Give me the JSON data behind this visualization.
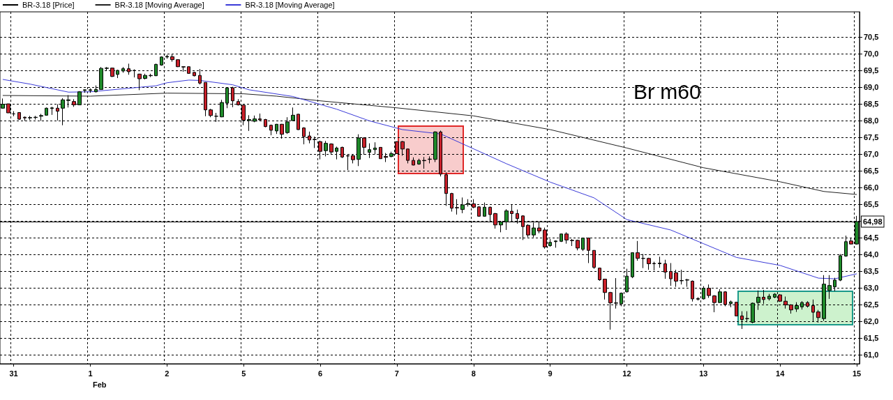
{
  "chart_data": {
    "type": "candlestick",
    "categories": [
      null,
      null,
      "31",
      null,
      null,
      null,
      null,
      null,
      null,
      null,
      null,
      null,
      null,
      null,
      null,
      null,
      "1",
      null,
      null,
      null,
      null,
      null,
      null,
      null,
      null,
      null,
      null,
      null,
      null,
      null,
      "2",
      null,
      null,
      null,
      null,
      null,
      null,
      null,
      null,
      null,
      null,
      null,
      null,
      null,
      "5",
      null,
      null,
      null,
      null,
      null,
      null,
      null,
      null,
      null,
      null,
      null,
      null,
      null,
      "6",
      null,
      null,
      null,
      null,
      null,
      null,
      null,
      null,
      null,
      null,
      null,
      null,
      null,
      "7",
      null,
      null,
      null,
      null,
      null,
      null,
      null,
      null,
      null,
      null,
      null,
      null,
      null,
      "8",
      null,
      null,
      null,
      null,
      null,
      null,
      null,
      null,
      null,
      null,
      null,
      null,
      null,
      "9",
      null,
      null,
      null,
      null,
      null,
      null,
      null,
      null,
      null,
      null,
      null,
      null,
      null,
      "12",
      null,
      null,
      null,
      null,
      null,
      null,
      null,
      null,
      null,
      null,
      null,
      null,
      null,
      "13",
      null,
      null,
      null,
      null,
      null,
      null,
      null,
      null,
      null,
      null,
      null,
      null,
      null,
      "14",
      null,
      null,
      null,
      null,
      null,
      null,
      null,
      null,
      null,
      null,
      null,
      null,
      null,
      "15"
    ],
    "series": [
      {
        "name": "BR-3.18 [Price]",
        "color": "#000000",
        "colors": [
          "#1f8a2a",
          "#c8202a",
          "#000000",
          "#c8202a",
          "#c8202a",
          "#1f8a2a",
          "#1f8a2a",
          "#1f8a2a",
          "#1f8a2a",
          "#1f8a2a",
          "#c8202a",
          "#1f8a2a",
          "#1f8a2a",
          "#c8202a",
          "#1f8a2a",
          "#1f8a2a",
          "#1f8a2a",
          "#1f8a2a",
          "#1f8a2a",
          "#1f8a2a",
          "#c8202a",
          "#1f8a2a",
          "#1f8a2a",
          "#c8202a",
          "#c8202a",
          "#c8202a",
          "#1f8a2a",
          "#c8202a",
          "#1f8a2a",
          "#1f8a2a",
          "#1f8a2a",
          "#c8202a",
          "#c8202a",
          "#c8202a",
          "#c8202a",
          "#c8202a",
          "#c8202a",
          "#c8202a",
          "#c8202a",
          "#000000",
          "#1f8a2a",
          "#1f8a2a",
          "#c8202a",
          "#c8202a",
          "#c8202a",
          "#1f8a2a",
          "#1f8a2a",
          "#c8202a",
          "#c8202a",
          "#c8202a",
          "#1f8a2a",
          "#c8202a",
          "#1f8a2a",
          "#1f8a2a",
          "#c8202a",
          "#c8202a",
          "#c8202a",
          "#c8202a",
          "#c8202a",
          "#1f8a2a",
          "#c8202a",
          "#1f8a2a",
          "#c8202a",
          "#c8202a",
          "#c8202a",
          "#1f8a2a",
          "#c8202a",
          "#1f8a2a",
          "#1f8a2a",
          "#c8202a",
          "#c8202a",
          "#1f8a2a",
          "#c8202a",
          "#c8202a",
          "#c8202a",
          "#c8202a",
          "#1f8a2a",
          "#c8202a",
          "#1f8a2a",
          "#1f8a2a",
          "#c8202a",
          "#c8202a",
          "#c8202a",
          "#c8202a",
          "#1f8a2a",
          "#1f8a2a",
          "#c8202a",
          "#c8202a",
          "#1f8a2a",
          "#c8202a",
          "#c8202a",
          "#1f8a2a",
          "#1f8a2a",
          "#c8202a",
          "#c8202a",
          "#c8202a",
          "#c8202a",
          "#1f8a2a",
          "#c8202a",
          "#c8202a",
          "#1f8a2a",
          "#1f8a2a",
          "#1f8a2a",
          "#c8202a",
          "#c8202a",
          "#c8202a",
          "#1f8a2a",
          "#c8202a",
          "#c8202a",
          "#c8202a",
          "#c8202a",
          "#c8202a",
          "#c8202a",
          "#1f8a2a",
          "#1f8a2a",
          "#1f8a2a",
          "#c8202a",
          "#000000",
          "#c8202a",
          "#c8202a",
          "#1f8a2a",
          "#c8202a",
          "#c8202a",
          "#c8202a",
          "#1f8a2a",
          "#1f8a2a",
          "#c8202a",
          "#1f8a2a",
          "#1f8a2a",
          "#c8202a",
          "#c8202a",
          "#1f8a2a",
          "#c8202a",
          "#1f8a2a",
          "#c8202a",
          "#c8202a",
          "#000000",
          "#1f8a2a",
          "#1f8a2a",
          "#c8202a",
          "#1f8a2a",
          "#1f8a2a",
          "#c8202a",
          "#c8202a",
          "#c8202a",
          "#1f8a2a",
          "#1f8a2a",
          "#c8202a",
          "#c8202a",
          "#c8202a",
          "#1f8a2a",
          "#1f8a2a",
          "#1f8a2a",
          "#1f8a2a",
          "#1f8a2a",
          "#c8202a",
          "#1f8a2a"
        ],
        "ohlc": [
          [
            68.37,
            68.66,
            68.36,
            68.49
          ],
          [
            68.5,
            68.5,
            68.23,
            68.23
          ],
          [
            68.2,
            68.28,
            68.13,
            68.2
          ],
          [
            68.24,
            68.25,
            68.02,
            68.04
          ],
          [
            68.1,
            68.12,
            67.99,
            68.08
          ],
          [
            68.08,
            68.14,
            68.02,
            68.09
          ],
          [
            68.09,
            68.14,
            68.03,
            68.1
          ],
          [
            68.13,
            68.2,
            67.99,
            68.15
          ],
          [
            68.16,
            68.39,
            68.15,
            68.37
          ],
          [
            68.36,
            68.41,
            68.17,
            68.38
          ],
          [
            68.37,
            68.49,
            68.0,
            68.28
          ],
          [
            68.37,
            68.67,
            67.86,
            68.62
          ],
          [
            68.6,
            68.76,
            68.39,
            68.62
          ],
          [
            68.57,
            68.64,
            68.41,
            68.47
          ],
          [
            68.47,
            68.88,
            68.47,
            68.86
          ],
          [
            68.9,
            68.93,
            68.83,
            68.92
          ],
          [
            68.9,
            68.96,
            68.83,
            68.92
          ],
          [
            68.86,
            69.05,
            68.84,
            68.93
          ],
          [
            68.93,
            69.6,
            68.93,
            69.56
          ],
          [
            69.56,
            69.6,
            69.5,
            69.57
          ],
          [
            69.57,
            69.58,
            69.3,
            69.32
          ],
          [
            69.38,
            69.52,
            69.27,
            69.5
          ],
          [
            69.48,
            69.6,
            69.43,
            69.55
          ],
          [
            69.55,
            69.7,
            69.37,
            69.46
          ],
          [
            69.5,
            69.53,
            69.29,
            69.49
          ],
          [
            69.39,
            69.4,
            68.91,
            69.25
          ],
          [
            69.26,
            69.4,
            69.23,
            69.35
          ],
          [
            69.35,
            69.4,
            69.3,
            69.34
          ],
          [
            69.34,
            69.7,
            69.33,
            69.68
          ],
          [
            69.66,
            69.92,
            69.64,
            69.9
          ],
          [
            69.9,
            69.97,
            69.85,
            69.92
          ],
          [
            69.91,
            69.98,
            69.76,
            69.82
          ],
          [
            69.82,
            69.83,
            69.6,
            69.61
          ],
          [
            69.61,
            69.62,
            69.46,
            69.6
          ],
          [
            69.61,
            69.62,
            69.4,
            69.41
          ],
          [
            69.44,
            69.46,
            69.32,
            69.34
          ],
          [
            69.35,
            69.54,
            69.08,
            69.12
          ],
          [
            69.14,
            69.14,
            68.13,
            68.32
          ],
          [
            68.32,
            68.35,
            68.1,
            68.15
          ],
          [
            68.13,
            68.23,
            67.96,
            68.13
          ],
          [
            68.11,
            68.62,
            68.1,
            68.54
          ],
          [
            68.52,
            69.0,
            68.37,
            68.98
          ],
          [
            68.98,
            69.01,
            68.4,
            68.59
          ],
          [
            68.57,
            68.64,
            68.45,
            68.47
          ],
          [
            68.46,
            68.46,
            67.86,
            68.01
          ],
          [
            68.0,
            68.16,
            67.69,
            68.03
          ],
          [
            67.98,
            68.15,
            67.95,
            68.05
          ],
          [
            68.05,
            68.21,
            67.99,
            68.02
          ],
          [
            68.03,
            68.05,
            67.8,
            67.82
          ],
          [
            67.86,
            67.88,
            67.56,
            67.71
          ],
          [
            67.69,
            67.9,
            67.6,
            67.89
          ],
          [
            67.89,
            67.9,
            67.46,
            67.59
          ],
          [
            67.64,
            68.1,
            67.6,
            67.96
          ],
          [
            68.0,
            68.39,
            67.99,
            68.16
          ],
          [
            68.19,
            68.2,
            67.72,
            67.73
          ],
          [
            67.78,
            67.8,
            67.29,
            67.52
          ],
          [
            67.54,
            67.67,
            67.32,
            67.42
          ],
          [
            67.44,
            67.52,
            67.18,
            67.43
          ],
          [
            67.37,
            67.4,
            66.84,
            67.08
          ],
          [
            67.1,
            67.39,
            66.93,
            67.32
          ],
          [
            67.3,
            67.32,
            67.0,
            67.06
          ],
          [
            67.08,
            67.22,
            66.84,
            67.18
          ],
          [
            67.2,
            67.22,
            66.88,
            66.91
          ],
          [
            66.95,
            67.0,
            66.52,
            66.94
          ],
          [
            66.95,
            66.98,
            66.72,
            66.83
          ],
          [
            66.84,
            67.59,
            66.64,
            67.48
          ],
          [
            67.48,
            67.5,
            66.98,
            67.2
          ],
          [
            67.05,
            67.32,
            66.88,
            67.13
          ],
          [
            67.13,
            67.35,
            66.99,
            67.18
          ],
          [
            67.2,
            67.2,
            66.86,
            66.86
          ],
          [
            66.93,
            67.03,
            66.76,
            66.9
          ],
          [
            66.93,
            67.07,
            66.9,
            67.01
          ],
          [
            67.37,
            67.38,
            67.0,
            67.01
          ],
          [
            67.37,
            67.39,
            66.95,
            67.15
          ],
          [
            67.15,
            67.16,
            66.72,
            66.81
          ],
          [
            66.81,
            66.9,
            66.66,
            66.67
          ],
          [
            66.7,
            66.86,
            66.68,
            66.81
          ],
          [
            66.81,
            66.91,
            66.56,
            66.8
          ],
          [
            66.84,
            66.93,
            66.72,
            66.85
          ],
          [
            66.84,
            67.68,
            66.76,
            67.66
          ],
          [
            67.66,
            67.7,
            66.33,
            66.4
          ],
          [
            66.38,
            66.45,
            65.45,
            65.82
          ],
          [
            65.82,
            65.84,
            65.28,
            65.38
          ],
          [
            65.4,
            65.65,
            65.19,
            65.39
          ],
          [
            65.34,
            65.7,
            65.23,
            65.48
          ],
          [
            65.5,
            65.65,
            65.43,
            65.52
          ],
          [
            65.51,
            65.65,
            65.38,
            65.41
          ],
          [
            65.42,
            65.44,
            65.13,
            65.14
          ],
          [
            65.14,
            65.55,
            65.13,
            65.41
          ],
          [
            65.41,
            65.43,
            64.99,
            65.19
          ],
          [
            65.22,
            65.24,
            64.77,
            64.88
          ],
          [
            64.88,
            65.0,
            64.66,
            64.97
          ],
          [
            64.97,
            65.35,
            64.73,
            65.3
          ],
          [
            65.29,
            65.49,
            64.98,
            65.22
          ],
          [
            65.22,
            65.34,
            64.92,
            65.07
          ],
          [
            65.15,
            65.17,
            64.43,
            64.83
          ],
          [
            64.87,
            64.9,
            64.51,
            64.58
          ],
          [
            64.58,
            64.95,
            64.51,
            64.79
          ],
          [
            64.79,
            64.99,
            64.63,
            64.7
          ],
          [
            64.73,
            64.8,
            64.17,
            64.22
          ],
          [
            64.26,
            64.46,
            64.23,
            64.36
          ],
          [
            64.38,
            64.42,
            64.2,
            64.4
          ],
          [
            64.39,
            64.62,
            64.37,
            64.61
          ],
          [
            64.61,
            64.66,
            64.32,
            64.43
          ],
          [
            64.42,
            64.46,
            64.25,
            64.41
          ],
          [
            64.42,
            64.44,
            64.12,
            64.19
          ],
          [
            64.15,
            64.5,
            64.1,
            64.49
          ],
          [
            64.49,
            64.5,
            63.74,
            64.12
          ],
          [
            64.12,
            64.12,
            63.57,
            63.61
          ],
          [
            63.59,
            63.6,
            63.21,
            63.24
          ],
          [
            63.26,
            63.27,
            62.65,
            62.86
          ],
          [
            62.86,
            62.88,
            61.75,
            62.55
          ],
          [
            62.55,
            63.29,
            62.38,
            62.54
          ],
          [
            62.52,
            62.86,
            62.45,
            62.84
          ],
          [
            62.88,
            63.57,
            62.86,
            63.35
          ],
          [
            63.33,
            64.05,
            63.29,
            64.05
          ],
          [
            64.05,
            64.4,
            63.81,
            63.88
          ],
          [
            63.88,
            64.01,
            63.59,
            63.88
          ],
          [
            63.88,
            63.9,
            63.54,
            63.72
          ],
          [
            63.73,
            63.78,
            63.52,
            63.72
          ],
          [
            63.72,
            63.93,
            63.6,
            63.74
          ],
          [
            63.72,
            63.84,
            63.27,
            63.47
          ],
          [
            63.49,
            63.74,
            63.06,
            63.27
          ],
          [
            63.45,
            63.54,
            63.03,
            63.2
          ],
          [
            63.21,
            63.54,
            63.1,
            63.22
          ],
          [
            63.23,
            63.27,
            63.03,
            63.24
          ],
          [
            63.2,
            63.22,
            62.59,
            62.67
          ],
          [
            62.66,
            62.72,
            62.62,
            62.68
          ],
          [
            62.67,
            63.05,
            62.65,
            62.99
          ],
          [
            62.99,
            63.1,
            62.7,
            62.77
          ],
          [
            62.76,
            62.78,
            62.27,
            62.56
          ],
          [
            62.56,
            62.96,
            62.55,
            62.88
          ],
          [
            62.88,
            62.9,
            62.45,
            62.5
          ],
          [
            62.53,
            62.62,
            62.42,
            62.58
          ],
          [
            62.57,
            62.58,
            62.16,
            62.16
          ],
          [
            62.16,
            62.3,
            61.77,
            62.05
          ],
          [
            62.08,
            62.3,
            61.97,
            62.08
          ],
          [
            61.97,
            62.56,
            61.94,
            62.54
          ],
          [
            62.56,
            62.92,
            62.34,
            62.72
          ],
          [
            62.72,
            62.94,
            62.52,
            62.65
          ],
          [
            62.67,
            62.82,
            62.62,
            62.75
          ],
          [
            62.72,
            62.84,
            62.69,
            62.81
          ],
          [
            62.79,
            62.81,
            62.58,
            62.6
          ],
          [
            62.6,
            62.74,
            62.38,
            62.49
          ],
          [
            62.49,
            62.51,
            62.23,
            62.34
          ],
          [
            62.37,
            62.57,
            62.28,
            62.47
          ],
          [
            62.43,
            62.6,
            62.35,
            62.56
          ],
          [
            62.56,
            62.6,
            62.41,
            62.45
          ],
          [
            62.47,
            62.65,
            62.0,
            62.27
          ],
          [
            62.28,
            62.34,
            61.96,
            62.11
          ],
          [
            62.08,
            63.38,
            62.01,
            63.11
          ],
          [
            62.92,
            63.38,
            62.67,
            63.07
          ],
          [
            63.03,
            63.3,
            62.9,
            63.23
          ],
          [
            63.23,
            64.01,
            63.2,
            63.96
          ],
          [
            63.95,
            64.56,
            63.93,
            64.38
          ],
          [
            64.4,
            64.48,
            64.3,
            64.31
          ],
          [
            64.31,
            65.15,
            64.29,
            64.98
          ]
        ]
      },
      {
        "name": "BR-3.18 [Moving Average]",
        "type": "line",
        "color": "#202020",
        "values": [
          68.75,
          null,
          null,
          null,
          null,
          null,
          null,
          null,
          null,
          null,
          null,
          null,
          null,
          null,
          null,
          null,
          68.73,
          null,
          null,
          null,
          null,
          null,
          null,
          null,
          null,
          null,
          null,
          null,
          null,
          null,
          68.82,
          null,
          null,
          null,
          null,
          null,
          null,
          null,
          null,
          null,
          null,
          null,
          null,
          null,
          68.8,
          null,
          null,
          null,
          null,
          null,
          68.73,
          null,
          null,
          null,
          null,
          null,
          null,
          null,
          68.59,
          null,
          null,
          null,
          null,
          null,
          null,
          null,
          null,
          null,
          null,
          null,
          null,
          null,
          68.38,
          null,
          null,
          null,
          null,
          null,
          null,
          null,
          null,
          null,
          null,
          null,
          null,
          null,
          68.14,
          null,
          null,
          null,
          null,
          null,
          null,
          null,
          null,
          null,
          null,
          null,
          null,
          null,
          67.73,
          null,
          null,
          null,
          null,
          null,
          null,
          null,
          null,
          null,
          null,
          null,
          null,
          null,
          67.18,
          null,
          null,
          null,
          null,
          null,
          null,
          null,
          null,
          null,
          null,
          null,
          null,
          null,
          66.59,
          null,
          null,
          null,
          null,
          null,
          null,
          null,
          null,
          null,
          null,
          null,
          null,
          null,
          66.17,
          null,
          null,
          null,
          null,
          null,
          null,
          null,
          65.88,
          null,
          null,
          null,
          null,
          null,
          65.79
        ]
      },
      {
        "name": "BR-3.18 [Moving Average]",
        "type": "line",
        "color": "#3a3ad8",
        "values": [
          69.23,
          null,
          null,
          null,
          null,
          69.09,
          null,
          null,
          null,
          null,
          null,
          null,
          68.85,
          null,
          null,
          null,
          68.86,
          null,
          null,
          null,
          null,
          null,
          null,
          null,
          null,
          null,
          null,
          null,
          69.04,
          null,
          69.13,
          null,
          null,
          null,
          69.21,
          null,
          69.2,
          null,
          null,
          null,
          null,
          null,
          69.07,
          null,
          null,
          68.92,
          null,
          null,
          null,
          null,
          null,
          null,
          null,
          68.72,
          null,
          null,
          null,
          null,
          null,
          null,
          null,
          68.34,
          null,
          null,
          null,
          null,
          null,
          67.99,
          null,
          null,
          null,
          null,
          null,
          67.73,
          null,
          null,
          null,
          null,
          null,
          null,
          67.6,
          null,
          null,
          null,
          null,
          null,
          null,
          null,
          null,
          null,
          null,
          null,
          66.71,
          null,
          null,
          null,
          null,
          null,
          null,
          null,
          66.16,
          null,
          null,
          null,
          null,
          null,
          null,
          null,
          65.69,
          null,
          null,
          null,
          null,
          null,
          65.04,
          null,
          null,
          null,
          null,
          null,
          null,
          null,
          64.73,
          null,
          null,
          null,
          null,
          null,
          64.32,
          null,
          null,
          null,
          null,
          null,
          63.91,
          null,
          null,
          null,
          null,
          null,
          null,
          null,
          63.67,
          null,
          null,
          null,
          null,
          null,
          null,
          63.29,
          null,
          null,
          63.27,
          null,
          null,
          null,
          63.42
        ]
      }
    ],
    "ylim": [
      60.73,
      71.25
    ],
    "yticks": [
      {
        "value": 61,
        "label": "61,0"
      },
      {
        "value": 61.5,
        "label": "61,5"
      },
      {
        "value": 62,
        "label": "62,0"
      },
      {
        "value": 62.5,
        "label": "62,5"
      },
      {
        "value": 63,
        "label": "63,0"
      },
      {
        "value": 63.5,
        "label": "63,5"
      },
      {
        "value": 64,
        "label": "64,0"
      },
      {
        "value": 64.5,
        "label": "64,5"
      },
      {
        "value": 65,
        "label": null
      },
      {
        "value": 65.5,
        "label": "65,5"
      },
      {
        "value": 66,
        "label": "66,0"
      },
      {
        "value": 66.5,
        "label": "66,5"
      },
      {
        "value": 67,
        "label": "67,0"
      },
      {
        "value": 67.5,
        "label": "67,5"
      },
      {
        "value": 68,
        "label": "68,0"
      },
      {
        "value": 68.5,
        "label": "68,5"
      },
      {
        "value": 69,
        "label": "69,0"
      },
      {
        "value": 69.5,
        "label": "69,5"
      },
      {
        "value": 70,
        "label": "70,0"
      },
      {
        "value": 70.5,
        "label": "70,5"
      }
    ],
    "ref_lines": [
      {
        "axis": "y",
        "value": 64.98,
        "label": "64,98",
        "color": "#000000"
      }
    ],
    "annotations": [
      "Br m60",
      "Feb"
    ],
    "grid": true,
    "legend": "top left"
  }
}
